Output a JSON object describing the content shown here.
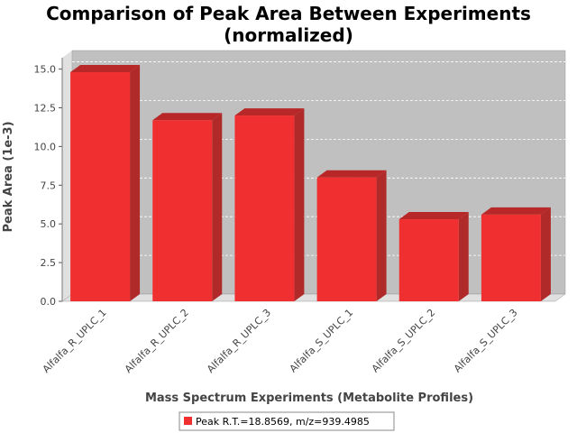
{
  "chart_data": {
    "type": "bar",
    "title_lines": [
      "Comparison of Peak Area Between Experiments",
      "(normalized)"
    ],
    "xlabel": "Mass Spectrum Experiments (Metabolite Profiles)",
    "ylabel": "Peak Area (1e-3)",
    "ylim": [
      0,
      15.5
    ],
    "yticks": [
      "0.0",
      "2.5",
      "5.0",
      "7.5",
      "10.0",
      "12.5",
      "15.0"
    ],
    "categories": [
      "Alfalfa_R_UPLC_1",
      "Alfalfa_R_UPLC_2",
      "Alfalfa_R_UPLC_3",
      "Alfalfa_S_UPLC_1",
      "Alfalfa_S_UPLC_2",
      "Alfalfa_S_UPLC_3"
    ],
    "series": [
      {
        "name": "Peak R.T.=18.8569, m/z=939.4985",
        "values": [
          14.8,
          11.7,
          12.0,
          8.0,
          5.3,
          5.6
        ]
      }
    ],
    "grid": true,
    "legend_position": "bottom",
    "colors": {
      "bar_front": "#f03030",
      "bar_top": "#b82828",
      "bar_side": "#b02a2a",
      "plot_bg": "#c0c0c0",
      "wall": "#e0e0e0"
    }
  }
}
